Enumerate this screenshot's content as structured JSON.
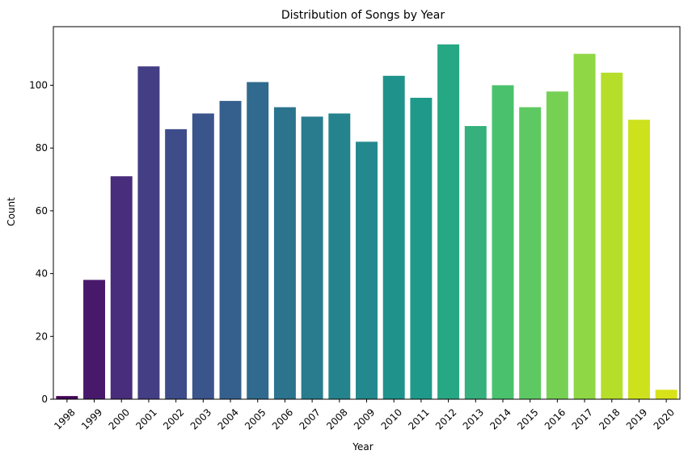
{
  "chart_data": {
    "type": "bar",
    "title": "Distribution of Songs by Year",
    "xlabel": "Year",
    "ylabel": "Count",
    "categories": [
      "1998",
      "1999",
      "2000",
      "2001",
      "2002",
      "2003",
      "2004",
      "2005",
      "2006",
      "2007",
      "2008",
      "2009",
      "2010",
      "2011",
      "2012",
      "2013",
      "2014",
      "2015",
      "2016",
      "2017",
      "2018",
      "2019",
      "2020"
    ],
    "values": [
      1,
      38,
      71,
      106,
      86,
      91,
      95,
      101,
      93,
      90,
      91,
      82,
      103,
      96,
      113,
      87,
      100,
      93,
      98,
      110,
      104,
      89,
      3
    ],
    "ylim": [
      0,
      118.65
    ],
    "yticks": [
      0,
      20,
      40,
      60,
      80,
      100
    ],
    "ytick_labels": [
      "0",
      "20",
      "40",
      "60",
      "80",
      "100"
    ],
    "palette": "viridis",
    "colors": [
      "#450457",
      "#48196b",
      "#472d7b",
      "#443e85",
      "#3e4c8a",
      "#3a548c",
      "#355f8d",
      "#306a8e",
      "#2c738e",
      "#287c8e",
      "#25838e",
      "#23898e",
      "#1f928c",
      "#1f9a8a",
      "#27a884",
      "#36b07c",
      "#4ac16d",
      "#5ec962",
      "#76d054",
      "#8fd744",
      "#b5de2b",
      "#cde11d",
      "#d8e219"
    ],
    "grid": false,
    "legend": "none"
  }
}
